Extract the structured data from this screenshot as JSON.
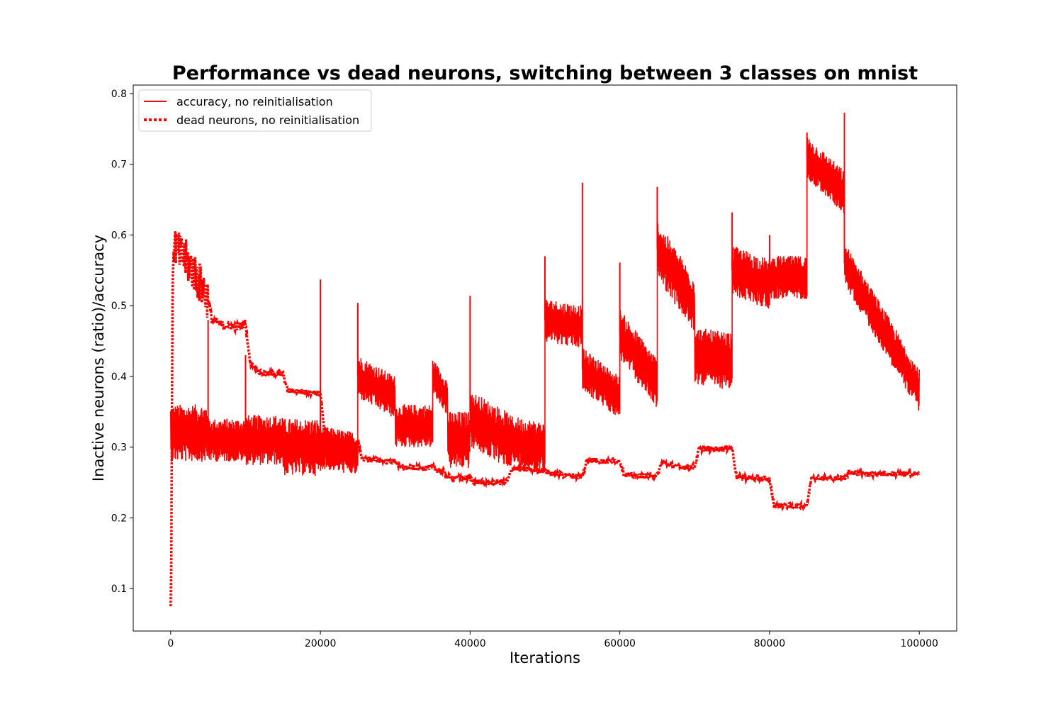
{
  "chart_data": {
    "type": "line",
    "title": "Performance vs dead neurons, switching between 3 classes on mnist",
    "xlabel": "Iterations",
    "ylabel": "Inactive neurons (ratio)/accuracy",
    "xlim": [
      -5000,
      105000
    ],
    "ylim": [
      0.04,
      0.812
    ],
    "xticks": [
      0,
      20000,
      40000,
      60000,
      80000,
      100000
    ],
    "yticks": [
      0.1,
      0.2,
      0.3,
      0.4,
      0.5,
      0.6,
      0.7,
      0.8
    ],
    "grid": false,
    "legend_position": "upper-left",
    "series": [
      {
        "name": "accuracy, no reinitialisation",
        "color": "#ff0000",
        "style": "solid",
        "segments": [
          {
            "x_start": 0,
            "x_end": 5000,
            "start": 0.32,
            "end": 0.32,
            "amplitude": 0.04
          },
          {
            "x_start": 5000,
            "x_end": 10000,
            "start": 0.31,
            "end": 0.31,
            "amplitude": 0.03
          },
          {
            "x_start": 10000,
            "x_end": 15000,
            "start": 0.31,
            "end": 0.31,
            "amplitude": 0.035
          },
          {
            "x_start": 15000,
            "x_end": 20000,
            "start": 0.3,
            "end": 0.3,
            "amplitude": 0.04
          },
          {
            "x_start": 20000,
            "x_end": 25000,
            "start": 0.3,
            "end": 0.29,
            "amplitude": 0.03
          },
          {
            "x_start": 25000,
            "x_end": 30000,
            "start": 0.4,
            "end": 0.37,
            "amplitude": 0.03
          },
          {
            "x_start": 30000,
            "x_end": 35000,
            "start": 0.33,
            "end": 0.33,
            "amplitude": 0.03
          },
          {
            "x_start": 35000,
            "x_end": 37000,
            "start": 0.4,
            "end": 0.37,
            "amplitude": 0.025
          },
          {
            "x_start": 37000,
            "x_end": 40000,
            "start": 0.31,
            "end": 0.31,
            "amplitude": 0.04
          },
          {
            "x_start": 40000,
            "x_end": 45000,
            "start": 0.34,
            "end": 0.31,
            "amplitude": 0.04
          },
          {
            "x_start": 45000,
            "x_end": 50000,
            "start": 0.31,
            "end": 0.3,
            "amplitude": 0.035
          },
          {
            "x_start": 50000,
            "x_end": 55000,
            "start": 0.48,
            "end": 0.47,
            "amplitude": 0.03
          },
          {
            "x_start": 55000,
            "x_end": 60000,
            "start": 0.41,
            "end": 0.37,
            "amplitude": 0.03
          },
          {
            "x_start": 60000,
            "x_end": 65000,
            "start": 0.46,
            "end": 0.39,
            "amplitude": 0.035
          },
          {
            "x_start": 65000,
            "x_end": 70000,
            "start": 0.58,
            "end": 0.5,
            "amplitude": 0.04
          },
          {
            "x_start": 70000,
            "x_end": 75000,
            "start": 0.43,
            "end": 0.42,
            "amplitude": 0.04
          },
          {
            "x_start": 75000,
            "x_end": 80000,
            "start": 0.55,
            "end": 0.53,
            "amplitude": 0.035
          },
          {
            "x_start": 80000,
            "x_end": 85000,
            "start": 0.54,
            "end": 0.54,
            "amplitude": 0.03
          },
          {
            "x_start": 85000,
            "x_end": 90000,
            "start": 0.71,
            "end": 0.66,
            "amplitude": 0.03
          },
          {
            "x_start": 90000,
            "x_end": 100000,
            "start": 0.56,
            "end": 0.38,
            "amplitude": 0.03
          }
        ],
        "spikes": [
          {
            "x": 5000,
            "y": 0.48
          },
          {
            "x": 10000,
            "y": 0.43
          },
          {
            "x": 20000,
            "y": 0.537
          },
          {
            "x": 25000,
            "y": 0.504
          },
          {
            "x": 40000,
            "y": 0.514
          },
          {
            "x": 50000,
            "y": 0.57
          },
          {
            "x": 55000,
            "y": 0.674
          },
          {
            "x": 60000,
            "y": 0.561
          },
          {
            "x": 65000,
            "y": 0.668
          },
          {
            "x": 75000,
            "y": 0.632
          },
          {
            "x": 80000,
            "y": 0.6
          },
          {
            "x": 85000,
            "y": 0.745
          },
          {
            "x": 90000,
            "y": 0.773
          }
        ]
      },
      {
        "name": "dead neurons, no reinitialisation",
        "color": "#ff0000",
        "style": "dotted",
        "points": [
          [
            0,
            0.075
          ],
          [
            80,
            0.14
          ],
          [
            160,
            0.33
          ],
          [
            240,
            0.5
          ],
          [
            350,
            0.58
          ],
          [
            500,
            0.59
          ],
          [
            1000,
            0.575
          ],
          [
            2000,
            0.565
          ],
          [
            3000,
            0.55
          ],
          [
            4000,
            0.53
          ],
          [
            5000,
            0.51
          ],
          [
            5500,
            0.48
          ],
          [
            7000,
            0.472
          ],
          [
            9000,
            0.47
          ],
          [
            10000,
            0.475
          ],
          [
            10600,
            0.42
          ],
          [
            12000,
            0.405
          ],
          [
            15000,
            0.403
          ],
          [
            15600,
            0.38
          ],
          [
            18000,
            0.378
          ],
          [
            20000,
            0.376
          ],
          [
            20600,
            0.315
          ],
          [
            23000,
            0.31
          ],
          [
            25000,
            0.305
          ],
          [
            25600,
            0.284
          ],
          [
            28000,
            0.281
          ],
          [
            30000,
            0.28
          ],
          [
            30600,
            0.272
          ],
          [
            33000,
            0.27
          ],
          [
            35000,
            0.272
          ],
          [
            35600,
            0.268
          ],
          [
            36500,
            0.265
          ],
          [
            37000,
            0.258
          ],
          [
            39000,
            0.256
          ],
          [
            40000,
            0.256
          ],
          [
            40600,
            0.251
          ],
          [
            43000,
            0.25
          ],
          [
            45000,
            0.251
          ],
          [
            45600,
            0.27
          ],
          [
            48000,
            0.268
          ],
          [
            50000,
            0.267
          ],
          [
            50600,
            0.264
          ],
          [
            53000,
            0.26
          ],
          [
            55000,
            0.258
          ],
          [
            55600,
            0.282
          ],
          [
            58000,
            0.28
          ],
          [
            60000,
            0.281
          ],
          [
            60600,
            0.261
          ],
          [
            63000,
            0.259
          ],
          [
            65000,
            0.26
          ],
          [
            65600,
            0.278
          ],
          [
            68000,
            0.272
          ],
          [
            70000,
            0.272
          ],
          [
            70600,
            0.298
          ],
          [
            73000,
            0.297
          ],
          [
            75000,
            0.299
          ],
          [
            75600,
            0.258
          ],
          [
            78000,
            0.256
          ],
          [
            80000,
            0.254
          ],
          [
            80600,
            0.218
          ],
          [
            83000,
            0.217
          ],
          [
            85000,
            0.218
          ],
          [
            85600,
            0.258
          ],
          [
            88000,
            0.255
          ],
          [
            90000,
            0.257
          ],
          [
            90600,
            0.265
          ],
          [
            93000,
            0.262
          ],
          [
            96000,
            0.262
          ],
          [
            100000,
            0.262
          ]
        ]
      }
    ]
  }
}
